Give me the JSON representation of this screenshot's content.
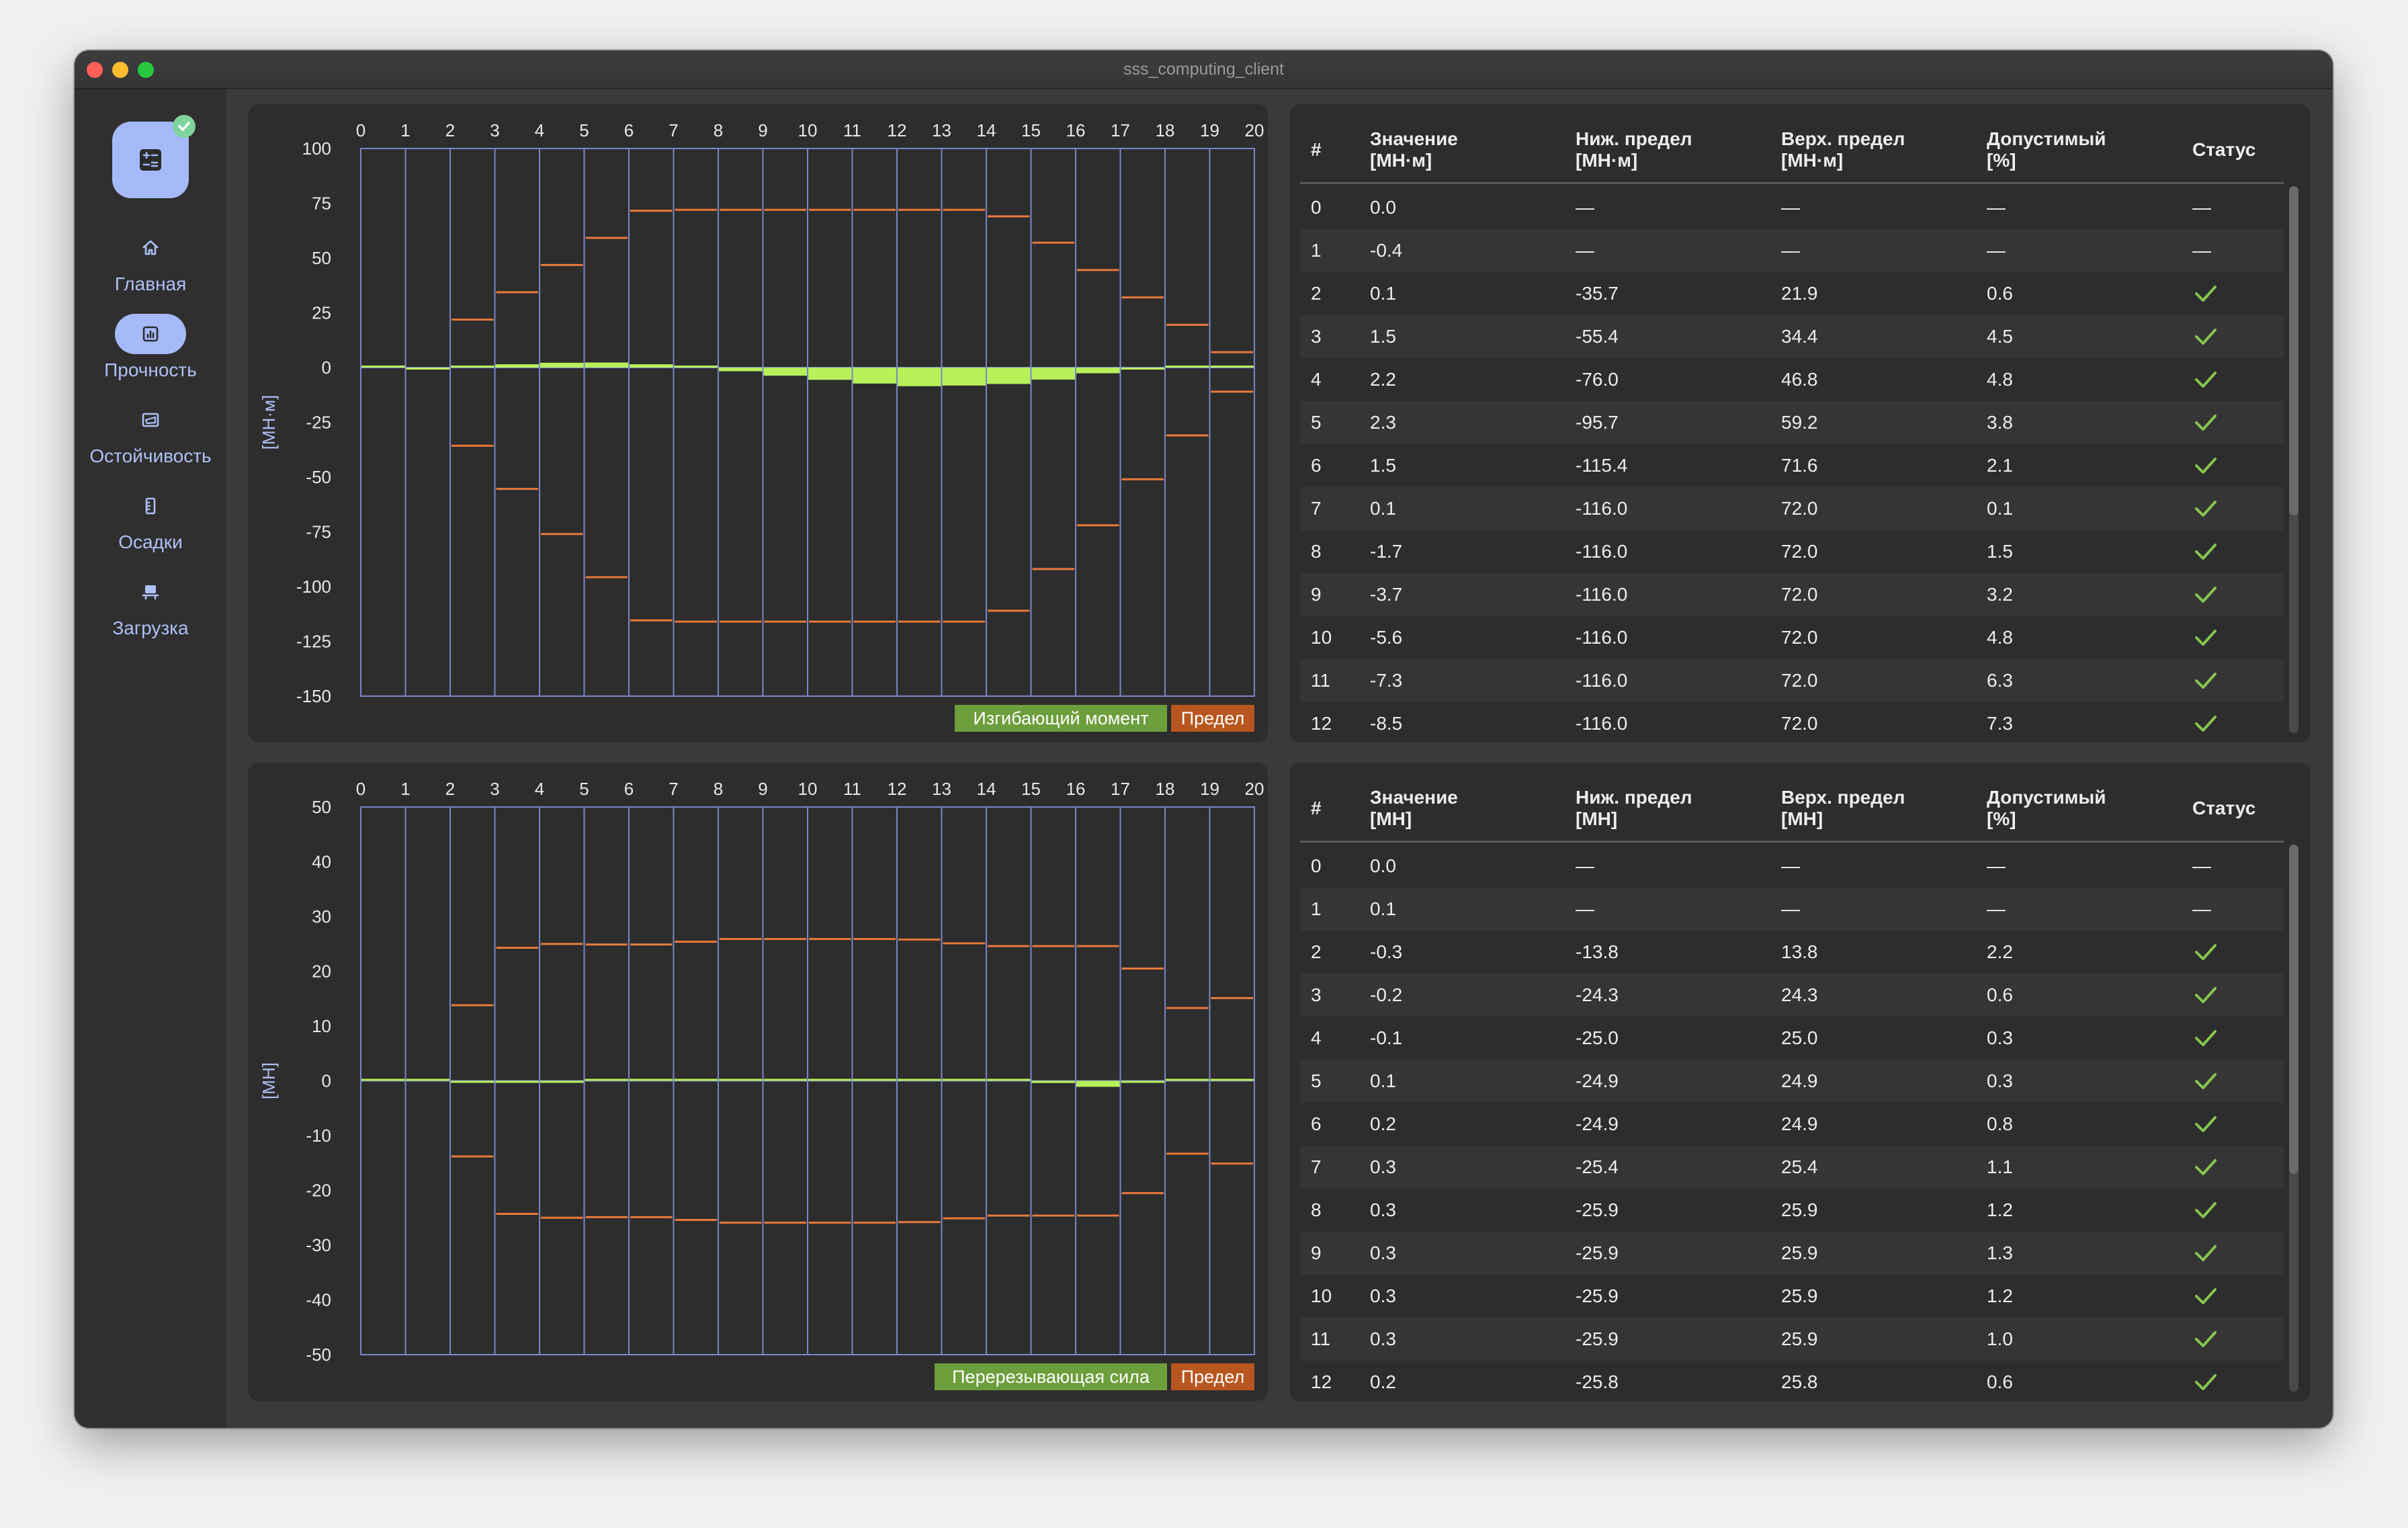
{
  "app": {
    "title": "sss_computing_client"
  },
  "sidebar": {
    "items": [
      {
        "label": "Главная",
        "icon": "home-icon"
      },
      {
        "label": "Прочность",
        "icon": "chart-icon",
        "active": true
      },
      {
        "label": "Остойчивость",
        "icon": "stability-icon"
      },
      {
        "label": "Осадки",
        "icon": "ruler-icon"
      },
      {
        "label": "Загрузка",
        "icon": "cargo-icon"
      }
    ]
  },
  "colors": {
    "accent": "#a6bafa",
    "value": "#b8f05a",
    "limit": "#e8793c",
    "grid": "#7a86c9",
    "ok": "#86c54f"
  },
  "chart_data": [
    {
      "type": "bar",
      "x_ticks": [
        "0",
        "1",
        "2",
        "3",
        "4",
        "5",
        "6",
        "7",
        "8",
        "9",
        "10",
        "11",
        "12",
        "13",
        "14",
        "15",
        "16",
        "17",
        "18",
        "19",
        "20"
      ],
      "y_ticks": [
        "100",
        "75",
        "50",
        "25",
        "0",
        "-25",
        "-50",
        "-75",
        "-100",
        "-125",
        "-150"
      ],
      "ylim": [
        -150,
        100
      ],
      "ylabel": "[МН·м]",
      "legend": [
        "Изгибающий момент",
        "Предел"
      ],
      "values": [
        0.0,
        -0.4,
        0.1,
        1.5,
        2.2,
        2.3,
        1.5,
        0.1,
        -1.7,
        -3.7,
        -5.6,
        -7.3,
        -8.5,
        -8.2,
        -7.5,
        -5.5,
        -2.6,
        -0.3,
        0.6,
        0.1
      ],
      "lower_limit": [
        null,
        null,
        -35.7,
        -55.4,
        -76.0,
        -95.7,
        -115.4,
        -116.0,
        -116.0,
        -116.0,
        -116.0,
        -116.0,
        -116.0,
        -116.0,
        -111.0,
        -92.0,
        -72.0,
        -51.0,
        -31.0,
        -11.0
      ],
      "upper_limit": [
        null,
        null,
        21.9,
        34.4,
        46.8,
        59.2,
        71.6,
        72.0,
        72.0,
        72.0,
        72.0,
        72.0,
        72.0,
        72.0,
        69.0,
        57.0,
        44.5,
        32.0,
        19.5,
        7.0
      ]
    },
    {
      "type": "bar",
      "x_ticks": [
        "0",
        "1",
        "2",
        "3",
        "4",
        "5",
        "6",
        "7",
        "8",
        "9",
        "10",
        "11",
        "12",
        "13",
        "14",
        "15",
        "16",
        "17",
        "18",
        "19",
        "20"
      ],
      "y_ticks": [
        "50",
        "40",
        "30",
        "20",
        "10",
        "0",
        "-10",
        "-20",
        "-30",
        "-40",
        "-50"
      ],
      "ylim": [
        -50,
        50
      ],
      "ylabel": "[МН]",
      "legend": [
        "Перерезывающая сила",
        "Предел"
      ],
      "values": [
        0.0,
        0.1,
        -0.3,
        -0.2,
        -0.1,
        0.1,
        0.2,
        0.3,
        0.3,
        0.3,
        0.3,
        0.3,
        0.2,
        0.0,
        0.0,
        -0.4,
        -1.1,
        -0.2,
        0.0,
        0.0
      ],
      "lower_limit": [
        null,
        null,
        -13.8,
        -24.3,
        -25.0,
        -24.9,
        -24.9,
        -25.4,
        -25.9,
        -25.9,
        -25.9,
        -25.9,
        -25.8,
        -25.1,
        -24.6,
        -24.6,
        -24.6,
        -20.5,
        -13.3,
        -15.1
      ],
      "upper_limit": [
        null,
        null,
        13.8,
        24.3,
        25.0,
        24.9,
        24.9,
        25.4,
        25.9,
        25.9,
        25.9,
        25.9,
        25.8,
        25.1,
        24.6,
        24.6,
        24.6,
        20.5,
        13.3,
        15.1
      ]
    }
  ],
  "tables": [
    {
      "headers": [
        [
          "#"
        ],
        [
          "Значение",
          "[МН·м]"
        ],
        [
          "Ниж. предел",
          "[МН·м]"
        ],
        [
          "Верх. предел",
          "[МН·м]"
        ],
        [
          "Допустимый",
          "[%]"
        ],
        [
          "Статус"
        ]
      ],
      "rows": [
        [
          "0",
          "0.0",
          "—",
          "—",
          "—",
          "—"
        ],
        [
          "1",
          "-0.4",
          "—",
          "—",
          "—",
          "—"
        ],
        [
          "2",
          "0.1",
          "-35.7",
          "21.9",
          "0.6",
          "ok"
        ],
        [
          "3",
          "1.5",
          "-55.4",
          "34.4",
          "4.5",
          "ok"
        ],
        [
          "4",
          "2.2",
          "-76.0",
          "46.8",
          "4.8",
          "ok"
        ],
        [
          "5",
          "2.3",
          "-95.7",
          "59.2",
          "3.8",
          "ok"
        ],
        [
          "6",
          "1.5",
          "-115.4",
          "71.6",
          "2.1",
          "ok"
        ],
        [
          "7",
          "0.1",
          "-116.0",
          "72.0",
          "0.1",
          "ok"
        ],
        [
          "8",
          "-1.7",
          "-116.0",
          "72.0",
          "1.5",
          "ok"
        ],
        [
          "9",
          "-3.7",
          "-116.0",
          "72.0",
          "3.2",
          "ok"
        ],
        [
          "10",
          "-5.6",
          "-116.0",
          "72.0",
          "4.8",
          "ok"
        ],
        [
          "11",
          "-7.3",
          "-116.0",
          "72.0",
          "6.3",
          "ok"
        ],
        [
          "12",
          "-8.5",
          "-116.0",
          "72.0",
          "7.3",
          "ok"
        ]
      ]
    },
    {
      "headers": [
        [
          "#"
        ],
        [
          "Значение",
          "[МН]"
        ],
        [
          "Ниж. предел",
          "[МН]"
        ],
        [
          "Верх. предел",
          "[МН]"
        ],
        [
          "Допустимый",
          "[%]"
        ],
        [
          "Статус"
        ]
      ],
      "rows": [
        [
          "0",
          "0.0",
          "—",
          "—",
          "—",
          "—"
        ],
        [
          "1",
          "0.1",
          "—",
          "—",
          "—",
          "—"
        ],
        [
          "2",
          "-0.3",
          "-13.8",
          "13.8",
          "2.2",
          "ok"
        ],
        [
          "3",
          "-0.2",
          "-24.3",
          "24.3",
          "0.6",
          "ok"
        ],
        [
          "4",
          "-0.1",
          "-25.0",
          "25.0",
          "0.3",
          "ok"
        ],
        [
          "5",
          "0.1",
          "-24.9",
          "24.9",
          "0.3",
          "ok"
        ],
        [
          "6",
          "0.2",
          "-24.9",
          "24.9",
          "0.8",
          "ok"
        ],
        [
          "7",
          "0.3",
          "-25.4",
          "25.4",
          "1.1",
          "ok"
        ],
        [
          "8",
          "0.3",
          "-25.9",
          "25.9",
          "1.2",
          "ok"
        ],
        [
          "9",
          "0.3",
          "-25.9",
          "25.9",
          "1.3",
          "ok"
        ],
        [
          "10",
          "0.3",
          "-25.9",
          "25.9",
          "1.2",
          "ok"
        ],
        [
          "11",
          "0.3",
          "-25.9",
          "25.9",
          "1.0",
          "ok"
        ],
        [
          "12",
          "0.2",
          "-25.8",
          "25.8",
          "0.6",
          "ok"
        ]
      ]
    }
  ]
}
